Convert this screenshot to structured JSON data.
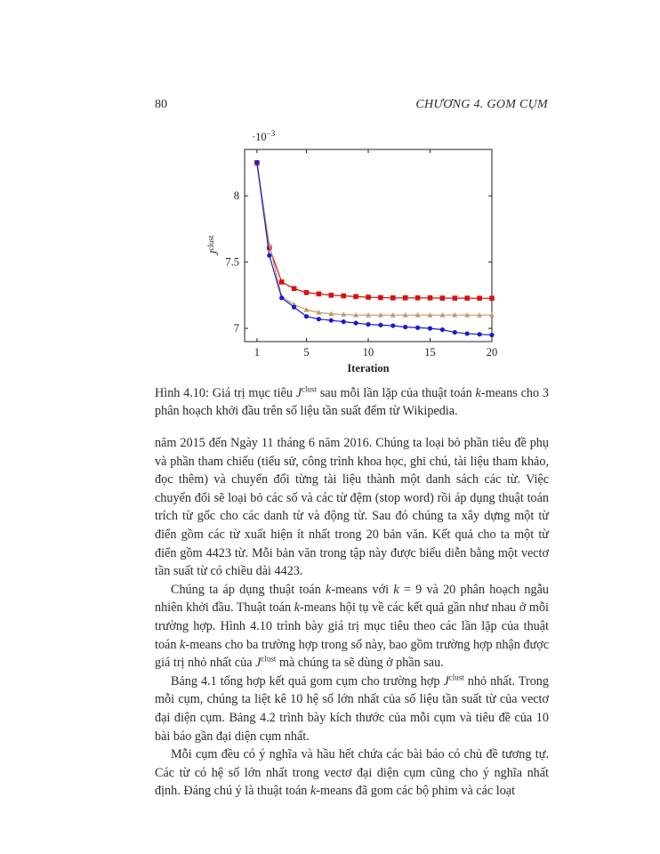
{
  "header": {
    "page_number": "80",
    "chapter_title": "CHƯƠNG 4.  GOM CỤM"
  },
  "chart_data": {
    "type": "line",
    "xlabel": "Iteration",
    "ylabel_base": "J",
    "ylabel_sup": "clust",
    "scale_label": "·10",
    "scale_exp": "−3",
    "xlim": [
      0,
      20
    ],
    "ylim": [
      6.9,
      8.35
    ],
    "xticks": [
      "1",
      "5",
      "10",
      "15",
      "20"
    ],
    "xtick_values": [
      1,
      5,
      10,
      15,
      20
    ],
    "yticks": [
      "7",
      "7.5",
      "8"
    ],
    "ytick_values": [
      7,
      7.5,
      8
    ],
    "x": [
      1,
      2,
      3,
      4,
      5,
      6,
      7,
      8,
      9,
      10,
      11,
      12,
      13,
      14,
      15,
      16,
      17,
      18,
      19,
      20
    ],
    "series": [
      {
        "color": "#d81010",
        "marker": "square",
        "values": [
          8.25,
          7.61,
          7.35,
          7.3,
          7.27,
          7.26,
          7.25,
          7.245,
          7.24,
          7.235,
          7.232,
          7.23,
          7.23,
          7.23,
          7.23,
          7.228,
          7.228,
          7.228,
          7.227,
          7.227
        ]
      },
      {
        "color": "#c49a6c",
        "marker": "triangle",
        "values": [
          8.24,
          7.63,
          7.24,
          7.18,
          7.14,
          7.12,
          7.11,
          7.105,
          7.1,
          7.1,
          7.1,
          7.1,
          7.1,
          7.1,
          7.1,
          7.1,
          7.1,
          7.1,
          7.1,
          7.1
        ]
      },
      {
        "color": "#1a1ad0",
        "marker": "circle",
        "values": [
          8.25,
          7.55,
          7.23,
          7.16,
          7.09,
          7.07,
          7.06,
          7.05,
          7.04,
          7.03,
          7.025,
          7.02,
          7.01,
          7.005,
          7.0,
          6.99,
          6.97,
          6.96,
          6.955,
          6.95
        ]
      }
    ]
  },
  "caption": {
    "prefix": "Hình 4.10: Giá trị mục tiêu ",
    "j": "J",
    "sup": "clust",
    "mid": " sau mỗi lần lặp của thuật toán ",
    "k": "k",
    "suffix": "-means cho 3 phân hoạch khởi đầu trên số liệu tần suất đếm từ Wikipedia."
  },
  "paragraphs": {
    "p1": "năm 2015 đến Ngày 11 tháng 6 năm 2016. Chúng ta loại bỏ phần tiêu đề phụ và phần tham chiếu (tiểu sử, công trình khoa học, ghi chú, tài liệu tham khảo, đọc thêm) và chuyển đổi từng tài liệu thành một danh sách các từ. Việc chuyển đổi sẽ loại bỏ các số và các từ đệm (stop word) rồi áp dụng thuật toán trích từ gốc cho các danh từ và động từ. Sau đó chúng ta xây dựng một từ điển gồm các từ xuất hiện ít nhất trong 20 bản văn. Kết quả cho ta một từ điển gồm 4423 từ. Mỗi bản văn trong tập này được biểu diễn bằng một vectơ tần suất từ có chiều dài 4423.",
    "p2_a": "Chúng ta áp dụng thuật toán ",
    "p2_k1": "k",
    "p2_b": "-means với ",
    "p2_k2": "k",
    "p2_c": " = 9 và 20 phân hoạch ngẫu nhiên khởi đầu. Thuật toán ",
    "p2_k3": "k",
    "p2_d": "-means hội tụ về các kết quả gần như nhau ở mỗi trường hợp. Hình 4.10 trình bày giá trị mục tiêu theo các lần lặp của thuật toán ",
    "p2_k4": "k",
    "p2_e": "-means cho ba trường hợp trong số này, bao gồm trường hợp nhận được giá trị nhỏ nhất của ",
    "p2_j": "J",
    "p2_sup": "clust",
    "p2_f": " mà chúng ta sẽ dùng ở phần sau.",
    "p3_a": "Bảng 4.1 tổng hợp kết quả gom cụm cho trường hợp ",
    "p3_j": "J",
    "p3_sup": "clust",
    "p3_b": " nhỏ nhất. Trong mỗi cụm, chúng ta liệt kê 10 hệ số lớn nhất của số liệu tần suất từ của vectơ đại diện cụm. Bảng 4.2 trình bày kích thước của mỗi cụm và tiêu đề của 10 bài báo gần đại diện cụm nhất.",
    "p4_a": "Mỗi cụm đều có ý nghĩa và hầu hết chứa các bài báo có chủ đề tương tự. Các từ có hệ số lớn nhất trong vectơ đại diện cụm cũng cho ý nghĩa nhất định. Đáng chú ý là thuật toán ",
    "p4_k": "k",
    "p4_b": "-means đã gom các bộ phim và các loạt"
  }
}
